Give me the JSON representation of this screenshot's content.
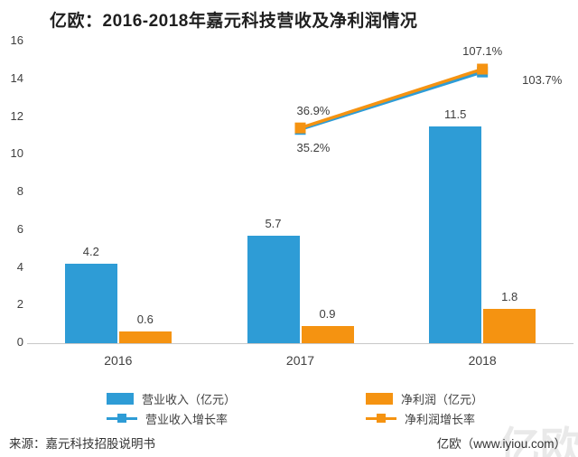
{
  "page": {
    "title": "亿欧：2016-2018年嘉元科技营收及净利润情况"
  },
  "chart_data": {
    "type": "combo",
    "title": "亿欧：2016-2018年嘉元科技营收及净利润情况",
    "categories": [
      "2016",
      "2017",
      "2018"
    ],
    "bar_series": [
      {
        "key": "revenue",
        "name": "营业收入（亿元）",
        "color": "#2E9CD6",
        "values": [
          4.2,
          5.7,
          11.5
        ]
      },
      {
        "key": "net-profit",
        "name": "净利润（亿元）",
        "color": "#F59311",
        "values": [
          0.6,
          0.9,
          1.8
        ]
      }
    ],
    "line_series": [
      {
        "key": "revenue-growth",
        "name": "营业收入增长率",
        "color": "#2E9CD6",
        "values": [
          null,
          35.2,
          103.7
        ],
        "label_pos": [
          null,
          "below",
          "right"
        ]
      },
      {
        "key": "net-profit-growth",
        "name": "净利润增长率",
        "color": "#F59311",
        "values": [
          null,
          36.9,
          107.1
        ],
        "label_pos": [
          null,
          "above",
          "above-center"
        ]
      }
    ],
    "ylim": [
      0,
      16
    ],
    "yticks": [
      0,
      2,
      4,
      6,
      8,
      10,
      12,
      14,
      16
    ],
    "y2lim": [
      -220,
      140
    ],
    "grid": false,
    "legend_position": "bottom"
  },
  "footer": {
    "source": "来源：嘉元科技招股说明书",
    "brand": "亿欧（www.iyiou.com）",
    "watermark": "亿欧"
  }
}
